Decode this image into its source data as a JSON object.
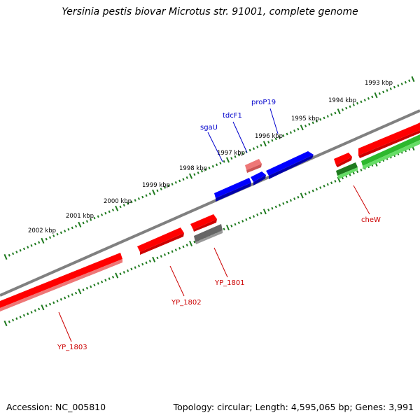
{
  "title": "Yersinia pestis biovar Microtus str. 91001, complete genome",
  "footer": {
    "accession": "Accession: NC_005810",
    "topology": "Topology: circular; Length: 4,595,065 bp; Genes: 3,991"
  },
  "colors": {
    "backbone": "#808080",
    "tick_green": "#1f7a1f",
    "gene_red": "#ff0000",
    "gene_red_light": "#ee7777",
    "gene_blue": "#0000ff",
    "gene_green": "#2db82d",
    "gene_gray": "#666666",
    "label_red": "#cc0000",
    "label_blue": "#0000cc"
  },
  "kbp_ticks": [
    {
      "label": "1993 kbp"
    },
    {
      "label": "1994 kbp"
    },
    {
      "label": "1995 kbp"
    },
    {
      "label": "1996 kbp"
    },
    {
      "label": "1997 kbp"
    },
    {
      "label": "1998 kbp"
    },
    {
      "label": "1999 kbp"
    },
    {
      "label": "2000 kbp"
    },
    {
      "label": "2001 kbp"
    },
    {
      "label": "2002 kbp"
    }
  ],
  "gene_labels": [
    {
      "name": "proP19",
      "strand": "forward"
    },
    {
      "name": "tdcF1",
      "strand": "forward"
    },
    {
      "name": "sgaU",
      "strand": "forward"
    },
    {
      "name": "cheW",
      "strand": "reverse"
    },
    {
      "name": "YP_1801",
      "strand": "reverse"
    },
    {
      "name": "YP_1802",
      "strand": "reverse"
    },
    {
      "name": "YP_1803",
      "strand": "reverse"
    }
  ]
}
